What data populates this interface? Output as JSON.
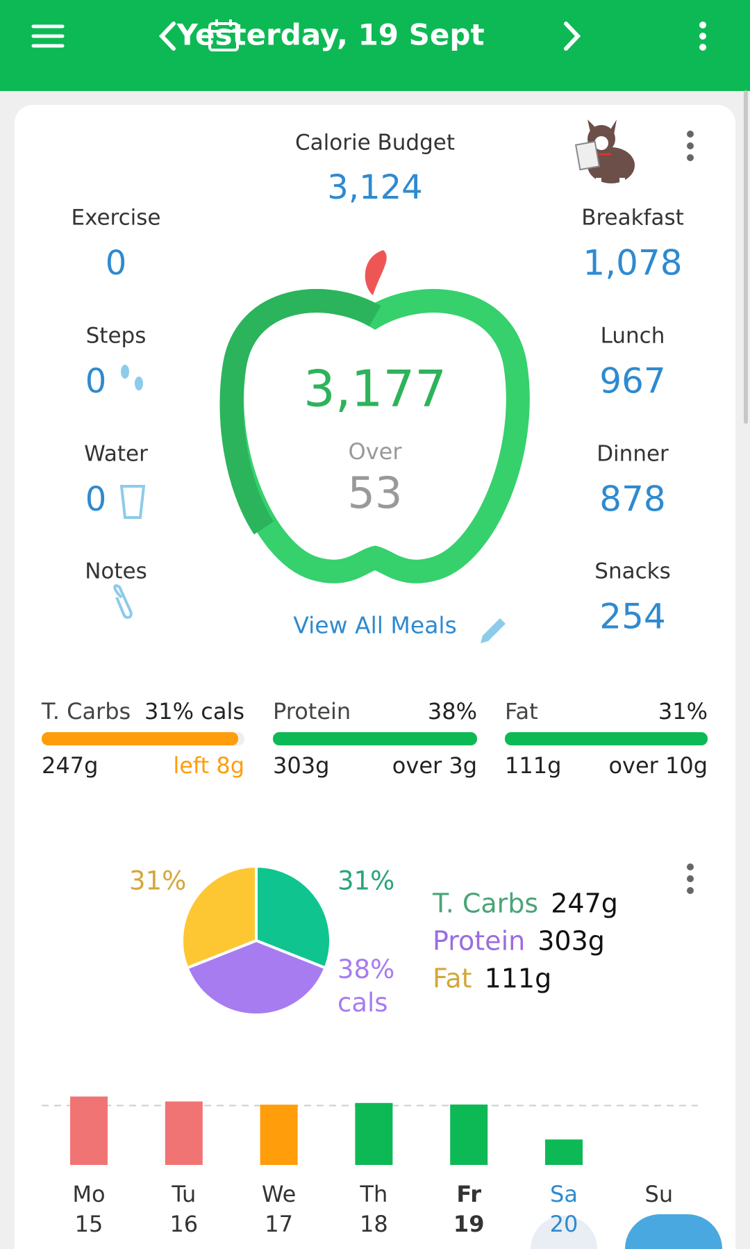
{
  "header": {
    "title": "Yesterday, 19 Sept"
  },
  "summary": {
    "budget_label": "Calorie Budget",
    "budget": "3,124",
    "left": [
      {
        "label": "Exercise",
        "value": "0"
      },
      {
        "label": "Steps",
        "value": "0"
      },
      {
        "label": "Water",
        "value": "0"
      },
      {
        "label": "Notes"
      }
    ],
    "meals": [
      {
        "label": "Breakfast",
        "value": "1,078"
      },
      {
        "label": "Lunch",
        "value": "967"
      },
      {
        "label": "Dinner",
        "value": "878"
      },
      {
        "label": "Snacks",
        "value": "254"
      }
    ],
    "consumed": "3,177",
    "status": "Over",
    "difference": "53",
    "view_all": "View All Meals"
  },
  "macros": [
    {
      "name": "T. Carbs",
      "pct": "31% cals",
      "grams": "247g",
      "remainder": "left 8g"
    },
    {
      "name": "Protein",
      "pct": "38%",
      "grams": "303g",
      "remainder": "over 3g"
    },
    {
      "name": "Fat",
      "pct": "31%",
      "grams": "111g",
      "remainder": "over 10g"
    }
  ],
  "pie": {
    "values": [
      31,
      38,
      31
    ],
    "value_labels": [
      "31%",
      "38% cals",
      "31%"
    ],
    "colors": [
      "#10c48f",
      "#a77cf0",
      "#fdc734"
    ],
    "legend": [
      {
        "name": "T. Carbs",
        "grams": "247g"
      },
      {
        "name": "Protein",
        "grams": "303g"
      },
      {
        "name": "Fat",
        "grams": "111g"
      }
    ]
  },
  "week": {
    "days": [
      "Mo",
      "Tu",
      "We",
      "Th",
      "Fr",
      "Sa",
      "Su"
    ],
    "dates": [
      "15",
      "16",
      "17",
      "18",
      "19",
      "20",
      null
    ],
    "values": [
      3600,
      3340,
      3170,
      3260,
      3177,
      1340,
      null
    ],
    "colors": [
      "#f07474",
      "#f07474",
      "#ff9d0a",
      "#0db954",
      "#0db954",
      "#0db954",
      "#0db954"
    ],
    "ylim": [
      0,
      3800
    ],
    "budget_line": 3124
  }
}
